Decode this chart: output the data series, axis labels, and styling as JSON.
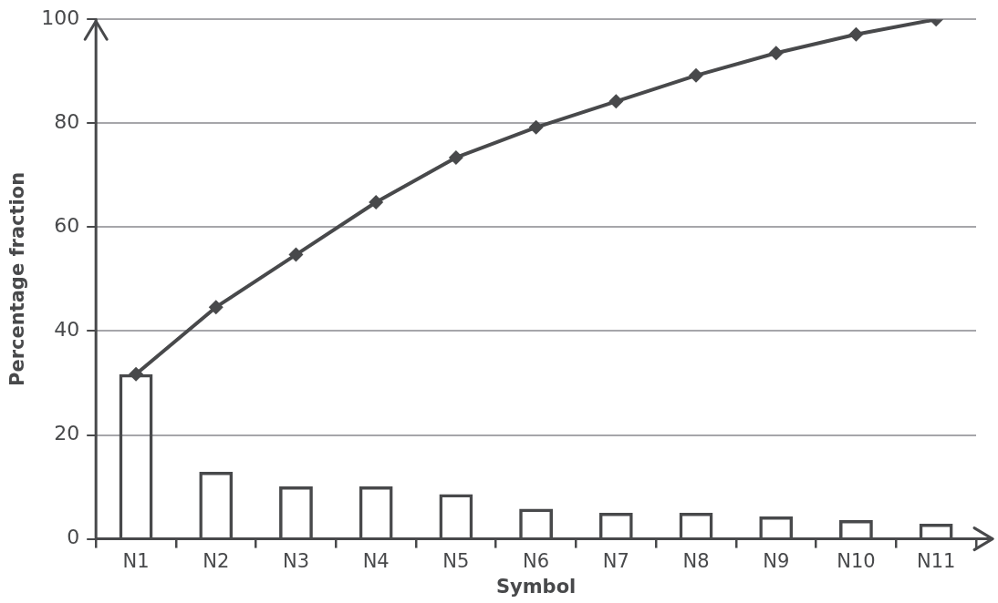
{
  "chart_data": {
    "type": "bar",
    "xlabel": "Symbol",
    "ylabel": "Percentage fraction",
    "categories": [
      "N1",
      "N2",
      "N3",
      "N4",
      "N5",
      "N6",
      "N7",
      "N8",
      "N9",
      "N10",
      "N11"
    ],
    "series": [
      {
        "color": "#48494b",
        "values": [
          31.7,
          12.9,
          10.1,
          10.1,
          8.6,
          5.8,
          5.0,
          5.0,
          4.3,
          3.6,
          2.9
        ]
      },
      {
        "type": "line",
        "color": "#48494b",
        "values": [
          31.7,
          44.6,
          54.7,
          64.8,
          73.4,
          79.2,
          84.2,
          89.2,
          93.5,
          97.1,
          100
        ]
      }
    ],
    "ylim": [
      0,
      100
    ],
    "yticks": [
      0,
      20,
      40,
      60,
      80,
      100
    ],
    "grid": "y",
    "legend": false,
    "marker": "diamond",
    "line_style": "solid"
  }
}
